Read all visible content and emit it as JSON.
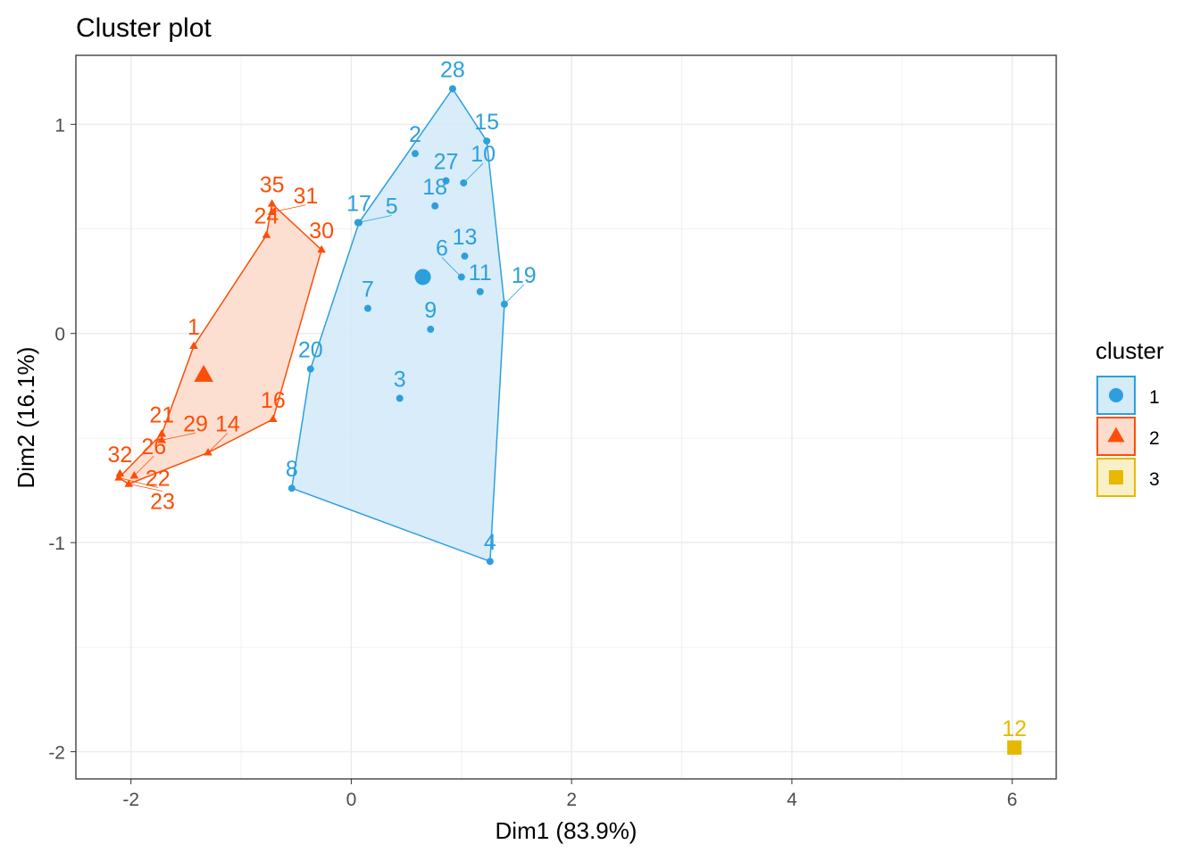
{
  "chart_data": {
    "type": "scatter",
    "title": "Cluster plot",
    "xlabel": "Dim1 (83.9%)",
    "ylabel": "Dim2 (16.1%)",
    "xlim": [
      -2.5,
      6.4
    ],
    "ylim": [
      -2.13,
      1.33
    ],
    "xticks": [
      -2,
      0,
      2,
      4,
      6
    ],
    "yticks": [
      -2,
      -1,
      0,
      1
    ],
    "grid": true,
    "legend": {
      "title": "cluster",
      "position": "right",
      "entries": [
        "1",
        "2",
        "3"
      ]
    },
    "clusters": [
      {
        "name": "1",
        "color": "#2D9FDD",
        "fill": "#D4EBF8",
        "shape": "circle",
        "center": [
          0.65,
          0.27
        ],
        "hull": [
          "28",
          "15",
          "19",
          "4",
          "8",
          "20",
          "17"
        ],
        "points": [
          {
            "label": "28",
            "x": 0.92,
            "y": 1.17
          },
          {
            "label": "15",
            "x": 1.23,
            "y": 0.92
          },
          {
            "label": "2",
            "x": 0.58,
            "y": 0.86
          },
          {
            "label": "27",
            "x": 0.86,
            "y": 0.73
          },
          {
            "label": "10",
            "x": 1.02,
            "y": 0.72
          },
          {
            "label": "18",
            "x": 0.76,
            "y": 0.61
          },
          {
            "label": "17",
            "x": 0.07,
            "y": 0.53
          },
          {
            "label": "5",
            "x": 0.06,
            "y": 0.53
          },
          {
            "label": "13",
            "x": 1.03,
            "y": 0.37
          },
          {
            "label": "6",
            "x": 1.0,
            "y": 0.27
          },
          {
            "label": "11",
            "x": 1.17,
            "y": 0.2
          },
          {
            "label": "19",
            "x": 1.39,
            "y": 0.14
          },
          {
            "label": "7",
            "x": 0.15,
            "y": 0.12
          },
          {
            "label": "9",
            "x": 0.72,
            "y": 0.02
          },
          {
            "label": "20",
            "x": -0.37,
            "y": -0.17
          },
          {
            "label": "3",
            "x": 0.44,
            "y": -0.31
          },
          {
            "label": "8",
            "x": -0.54,
            "y": -0.74
          },
          {
            "label": "4",
            "x": 1.26,
            "y": -1.09
          }
        ]
      },
      {
        "name": "2",
        "color": "#FC4E07",
        "fill": "#FDDCCD",
        "shape": "triangle",
        "center": [
          -1.34,
          -0.2
        ],
        "hull": [
          "35",
          "30",
          "16",
          "14",
          "23",
          "22",
          "21",
          "1",
          "24"
        ],
        "points": [
          {
            "label": "35",
            "x": -0.72,
            "y": 0.62
          },
          {
            "label": "31",
            "x": -0.72,
            "y": 0.58
          },
          {
            "label": "24",
            "x": -0.77,
            "y": 0.47
          },
          {
            "label": "30",
            "x": -0.27,
            "y": 0.4
          },
          {
            "label": "1",
            "x": -1.43,
            "y": -0.06
          },
          {
            "label": "16",
            "x": -0.71,
            "y": -0.41
          },
          {
            "label": "21",
            "x": -1.72,
            "y": -0.48
          },
          {
            "label": "29",
            "x": -1.72,
            "y": -0.51
          },
          {
            "label": "14",
            "x": -1.3,
            "y": -0.57
          },
          {
            "label": "32",
            "x": -2.1,
            "y": -0.67
          },
          {
            "label": "26",
            "x": -1.97,
            "y": -0.68
          },
          {
            "label": "22",
            "x": -2.11,
            "y": -0.69
          },
          {
            "label": "23",
            "x": -2.02,
            "y": -0.72
          }
        ]
      },
      {
        "name": "3",
        "color": "#E7B800",
        "fill": "#FAF0C8",
        "shape": "square",
        "center": [
          6.02,
          -1.98
        ],
        "hull": [],
        "points": [
          {
            "label": "12",
            "x": 6.02,
            "y": -1.98
          }
        ]
      }
    ]
  }
}
